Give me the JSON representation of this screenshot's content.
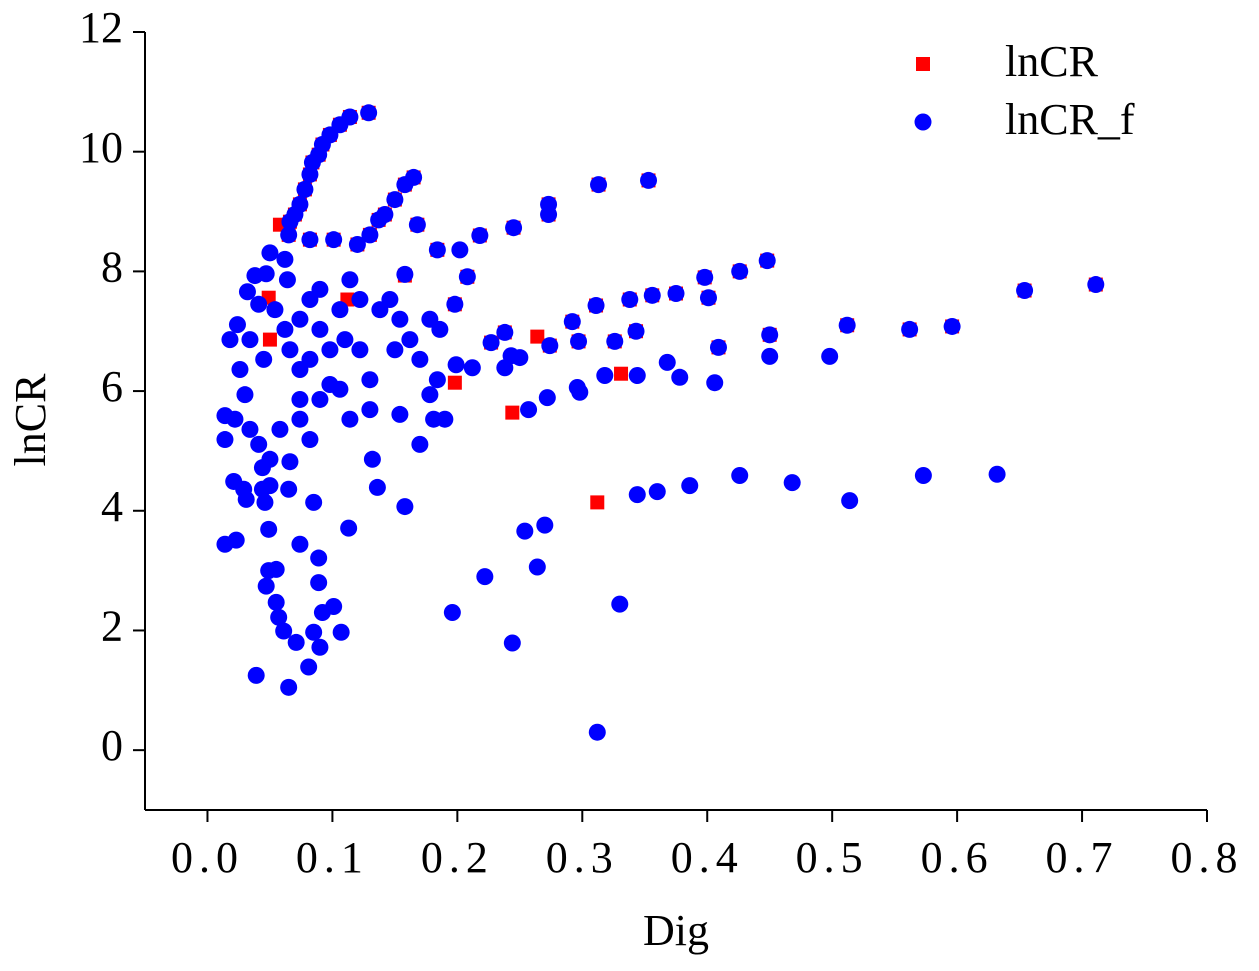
{
  "chart_data": {
    "type": "scatter",
    "x_label": "Dig",
    "y_label": "lnCR",
    "xlim": [
      -0.05,
      0.8
    ],
    "ylim": [
      -1,
      12
    ],
    "xticks": [
      {
        "value": 0,
        "label": "0.0"
      },
      0.1,
      0.2,
      0.3,
      0.4,
      0.5,
      0.6,
      0.7,
      0.8
    ],
    "yticks": [
      0,
      2,
      4,
      6,
      8,
      10,
      12
    ],
    "legend": "top-right",
    "series": [
      {
        "name": "lnCR",
        "color": "#ff0000",
        "marker": "square",
        "x": [
          0.158,
          0.264,
          0.244,
          0.331,
          0.312,
          0.05,
          0.058,
          0.112,
          0.049,
          0.198,
          0.129,
          0.114,
          0.106,
          0.098,
          0.092,
          0.089,
          0.084,
          0.082,
          0.078,
          0.074,
          0.07,
          0.066,
          0.065,
          0.165,
          0.158,
          0.15,
          0.142,
          0.137,
          0.13,
          0.12,
          0.101,
          0.082,
          0.168,
          0.353,
          0.313,
          0.273,
          0.273,
          0.245,
          0.218,
          0.184,
          0.448,
          0.426,
          0.398,
          0.401,
          0.375,
          0.356,
          0.338,
          0.311,
          0.292,
          0.208,
          0.198,
          0.711,
          0.654,
          0.596,
          0.562,
          0.512,
          0.45,
          0.409,
          0.343,
          0.326,
          0.297,
          0.274,
          0.238,
          0.227
        ],
        "values": [
          7.93,
          6.91,
          5.64,
          6.29,
          4.14,
          6.86,
          8.78,
          7.53,
          7.56,
          6.14,
          10.65,
          10.58,
          10.45,
          10.28,
          10.12,
          9.95,
          9.82,
          9.62,
          9.37,
          9.12,
          8.95,
          8.83,
          8.61,
          9.57,
          9.45,
          9.2,
          8.95,
          8.86,
          8.61,
          8.45,
          8.53,
          8.53,
          8.78,
          9.52,
          9.45,
          9.12,
          8.95,
          8.73,
          8.6,
          8.36,
          8.18,
          8.0,
          7.9,
          7.56,
          7.63,
          7.6,
          7.53,
          7.43,
          7.16,
          7.91,
          7.45,
          7.78,
          7.68,
          7.08,
          7.03,
          7.1,
          6.94,
          6.73,
          7.0,
          6.83,
          6.83,
          6.76,
          6.98,
          6.81
        ]
      },
      {
        "name": "lnCR_f",
        "color": "#0000ff",
        "marker": "circle",
        "x": [
          0.129,
          0.114,
          0.106,
          0.098,
          0.092,
          0.089,
          0.084,
          0.082,
          0.078,
          0.074,
          0.07,
          0.066,
          0.065,
          0.165,
          0.158,
          0.15,
          0.142,
          0.137,
          0.13,
          0.12,
          0.101,
          0.082,
          0.168,
          0.353,
          0.313,
          0.273,
          0.273,
          0.245,
          0.218,
          0.184,
          0.448,
          0.426,
          0.398,
          0.401,
          0.375,
          0.356,
          0.338,
          0.311,
          0.292,
          0.208,
          0.198,
          0.711,
          0.654,
          0.596,
          0.562,
          0.512,
          0.45,
          0.409,
          0.343,
          0.326,
          0.297,
          0.274,
          0.238,
          0.227,
          0.498,
          0.45,
          0.368,
          0.378,
          0.406,
          0.344,
          0.318,
          0.298,
          0.296,
          0.272,
          0.257,
          0.25,
          0.243,
          0.238,
          0.212,
          0.199,
          0.632,
          0.573,
          0.514,
          0.468,
          0.426,
          0.386,
          0.36,
          0.344,
          0.27,
          0.254,
          0.312,
          0.33,
          0.264,
          0.222,
          0.196,
          0.244,
          0.158,
          0.136,
          0.113,
          0.132,
          0.085,
          0.074,
          0.089,
          0.089,
          0.101,
          0.092,
          0.107,
          0.09,
          0.085,
          0.081,
          0.071,
          0.065,
          0.039,
          0.061,
          0.057,
          0.055,
          0.047,
          0.049,
          0.055,
          0.049,
          0.014,
          0.023,
          0.021,
          0.031,
          0.029,
          0.044,
          0.05,
          0.065,
          0.046,
          0.014,
          0.014,
          0.018,
          0.024,
          0.032,
          0.038,
          0.047,
          0.05,
          0.062,
          0.064,
          0.041,
          0.034,
          0.045,
          0.026,
          0.03,
          0.022,
          0.034,
          0.041,
          0.05,
          0.066,
          0.044,
          0.058,
          0.074,
          0.082,
          0.074,
          0.074,
          0.066,
          0.074,
          0.082,
          0.09,
          0.09,
          0.098,
          0.106,
          0.11,
          0.114,
          0.122,
          0.122,
          0.13,
          0.138,
          0.146,
          0.154,
          0.15,
          0.162,
          0.17,
          0.178,
          0.186,
          0.181,
          0.19,
          0.17,
          0.154,
          0.13,
          0.114,
          0.106,
          0.09,
          0.098,
          0.082,
          0.062,
          0.054,
          0.184,
          0.178,
          0.202,
          0.158
        ],
        "values": [
          10.65,
          10.58,
          10.45,
          10.28,
          10.12,
          9.95,
          9.82,
          9.62,
          9.37,
          9.12,
          8.95,
          8.83,
          8.61,
          9.57,
          9.45,
          9.2,
          8.95,
          8.86,
          8.61,
          8.45,
          8.53,
          8.53,
          8.78,
          9.52,
          9.45,
          9.12,
          8.95,
          8.73,
          8.6,
          8.36,
          8.18,
          8.0,
          7.9,
          7.56,
          7.63,
          7.6,
          7.53,
          7.43,
          7.16,
          7.91,
          7.45,
          7.78,
          7.68,
          7.08,
          7.03,
          7.1,
          6.94,
          6.73,
          7.0,
          6.83,
          6.83,
          6.76,
          6.98,
          6.81,
          6.58,
          6.58,
          6.48,
          6.23,
          6.14,
          6.26,
          6.26,
          5.98,
          6.06,
          5.89,
          5.69,
          6.56,
          6.59,
          6.39,
          6.39,
          6.44,
          4.61,
          4.59,
          4.17,
          4.47,
          4.59,
          4.42,
          4.32,
          4.27,
          3.76,
          3.66,
          0.3,
          2.44,
          3.06,
          2.9,
          2.3,
          1.79,
          4.07,
          4.39,
          3.71,
          4.86,
          4.14,
          3.44,
          3.21,
          2.8,
          2.4,
          2.3,
          1.97,
          1.72,
          1.97,
          1.39,
          1.8,
          1.05,
          1.25,
          1.99,
          2.22,
          2.47,
          2.74,
          3.0,
          3.02,
          3.69,
          3.44,
          3.51,
          4.49,
          4.19,
          4.36,
          4.36,
          4.42,
          4.36,
          4.14,
          5.59,
          5.19,
          6.86,
          7.11,
          7.66,
          7.93,
          7.96,
          8.31,
          8.2,
          7.86,
          7.45,
          6.86,
          6.53,
          6.36,
          5.94,
          5.53,
          5.36,
          5.11,
          4.86,
          4.82,
          4.72,
          5.36,
          5.53,
          5.19,
          5.86,
          6.36,
          6.69,
          7.2,
          7.53,
          7.7,
          7.03,
          6.69,
          7.36,
          6.86,
          7.86,
          7.53,
          6.69,
          6.19,
          7.36,
          7.53,
          7.2,
          6.69,
          6.86,
          6.53,
          7.2,
          7.03,
          5.53,
          5.53,
          5.11,
          5.61,
          5.69,
          5.53,
          6.03,
          5.86,
          6.11,
          6.53,
          7.03,
          7.36,
          6.19,
          5.94,
          8.36,
          7.95
        ]
      }
    ]
  }
}
